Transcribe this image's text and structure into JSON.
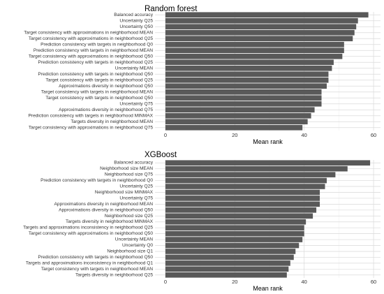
{
  "colors": {
    "bar": "#595959",
    "panel_bg": "#ffffff",
    "grid_major": "#d9d9d9",
    "grid_minor": "#efefef",
    "text": "#333333",
    "title": "#000000"
  },
  "chart_data": [
    {
      "type": "bar",
      "orientation": "horizontal",
      "title": "Random forest",
      "xlabel": "Mean rank",
      "ylabel": "",
      "xlim": [
        -3,
        62
      ],
      "xticks": [
        0,
        20,
        40,
        60
      ],
      "grid": true,
      "legend": "none",
      "categories": [
        "Balanced accuracy",
        "Uncertainty Q25",
        "Uncertainty Q50",
        "Target consistency with approximations in neighborhood MEAN",
        "Target consistency with approximations in neighborhood Q25",
        "Prediction consistency with targets in neighborhood Q0",
        "Prediction consistency with targets in neighborhood MEAN",
        "Target consistency with approximations in neighborhood Q50",
        "Prediction consistency with targets in neighborhood Q25",
        "Uncertainty MEAN",
        "Prediction consistency with targets in neighborhood Q50",
        "Target consistency with targets in neighborhood Q25",
        "Approximations diversity in neighborhood Q50",
        "Target consistency with targets in neighborhood MEAN",
        "Target consistency with targets in neighborhood Q50",
        "Uncertainty Q75",
        "Approximations diversity in neighborhood Q75",
        "Prediction consistency with targets in neighborhood MINMAX",
        "Targets diversity in neighborhood MEAN",
        "Target consistency with approximations in neighborhood Q75"
      ],
      "values": [
        58.5,
        55.5,
        55.0,
        54.5,
        54.0,
        51.5,
        51.5,
        51.0,
        48.5,
        48.0,
        47.0,
        47.0,
        46.5,
        45.0,
        45.0,
        45.0,
        43.0,
        42.0,
        41.0,
        39.5
      ]
    },
    {
      "type": "bar",
      "orientation": "horizontal",
      "title": "XGBoost",
      "xlabel": "Mean rank",
      "ylabel": "",
      "xlim": [
        -3,
        62
      ],
      "xticks": [
        0,
        20,
        40,
        60
      ],
      "grid": true,
      "legend": "none",
      "categories": [
        "Balanced accuracy",
        "Neighborhood size MEAN",
        "Neighborhood size Q75",
        "Prediction consistency with targets in neighborhood Q0",
        "Uncertainty Q25",
        "Neighborhood size MINMAX",
        "Uncertainty Q75",
        "Approximations diversity in neighborhood MEAN",
        "Approximations diversity in neighborhood Q50",
        "Neighborhood size Q25",
        "Targets diversity in neighborhood MINMAX",
        "Targets and approximations inconsistency in neighborhood Q25",
        "Target consistency with approximations in neighborhood Q50",
        "Uncertainty MEAN",
        "Uncertainty Q0",
        "Neighborhood size Q1",
        "Prediction consistency with targets in neighborhood Q50",
        "Targets and approximations inconsistency in neighborhood Q1",
        "Target consistency with targets in neighborhood MEAN",
        "Targets diversity in neighborhood Q25"
      ],
      "values": [
        59.0,
        52.5,
        49.0,
        46.5,
        46.0,
        44.5,
        44.5,
        44.5,
        43.5,
        42.5,
        40.5,
        40.0,
        40.0,
        39.5,
        38.5,
        37.5,
        37.0,
        36.0,
        35.5,
        35.0
      ]
    }
  ]
}
